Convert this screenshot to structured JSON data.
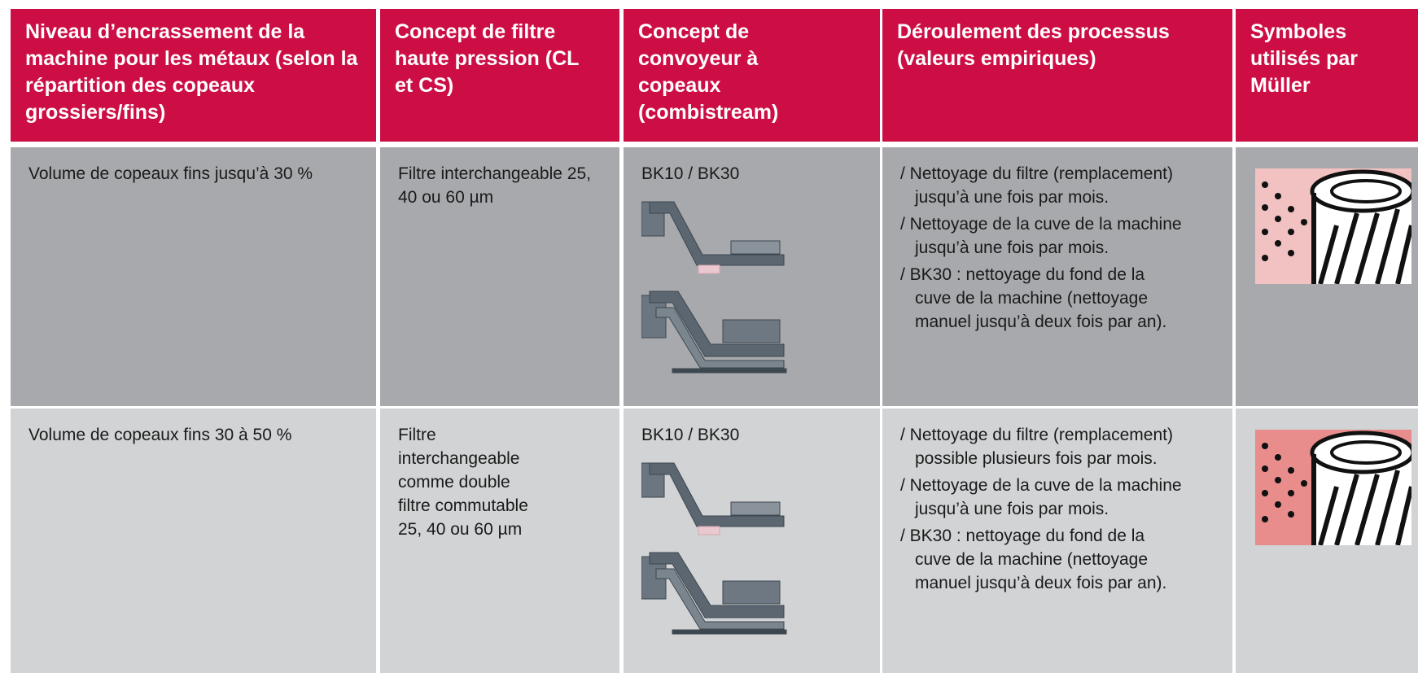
{
  "header": {
    "columns": [
      "Niveau d’encrassement de la machine pour les métaux (selon la répartition des copeaux grossiers/fins)",
      "Concept de filtre haute pression (CL et CS)",
      "Concept de convoyeur à copeaux (combistream)",
      "Déroulement des processus (valeurs empiriques)",
      "Symboles utilisés par Müller"
    ]
  },
  "rows": [
    {
      "level": "Volume de copeaux fins jusqu’à 30 %",
      "filter": "Filtre interchangeable 25, 40 ou 60 µm",
      "conveyor": "BK10 / BK30",
      "process": [
        "/ Nettoyage du filtre (remplacement) jusqu’à une fois par mois.",
        "/ Nettoyage de la cuve de la machine jusqu’à une fois par mois.",
        "/ BK30 : nettoyage du fond de la cuve de la machine (nettoyage manuel jusqu’à deux fois par an)."
      ]
    },
    {
      "level": "Volume de copeaux fins 30 à 50 %",
      "filter": "Filtre interchangeable comme double filtre commutable 25, 40 ou 60 µm",
      "conveyor": "BK10 / BK30",
      "process": [
        "/ Nettoyage du filtre (remplacement) possible plusieurs fois par mois.",
        "/ Nettoyage de la cuve de la machine jusqu’à une fois par mois.",
        "/ BK30 : nettoyage du fond de la cuve de la machine (nettoyage manuel jusqu’à deux fois par an)."
      ]
    }
  ]
}
